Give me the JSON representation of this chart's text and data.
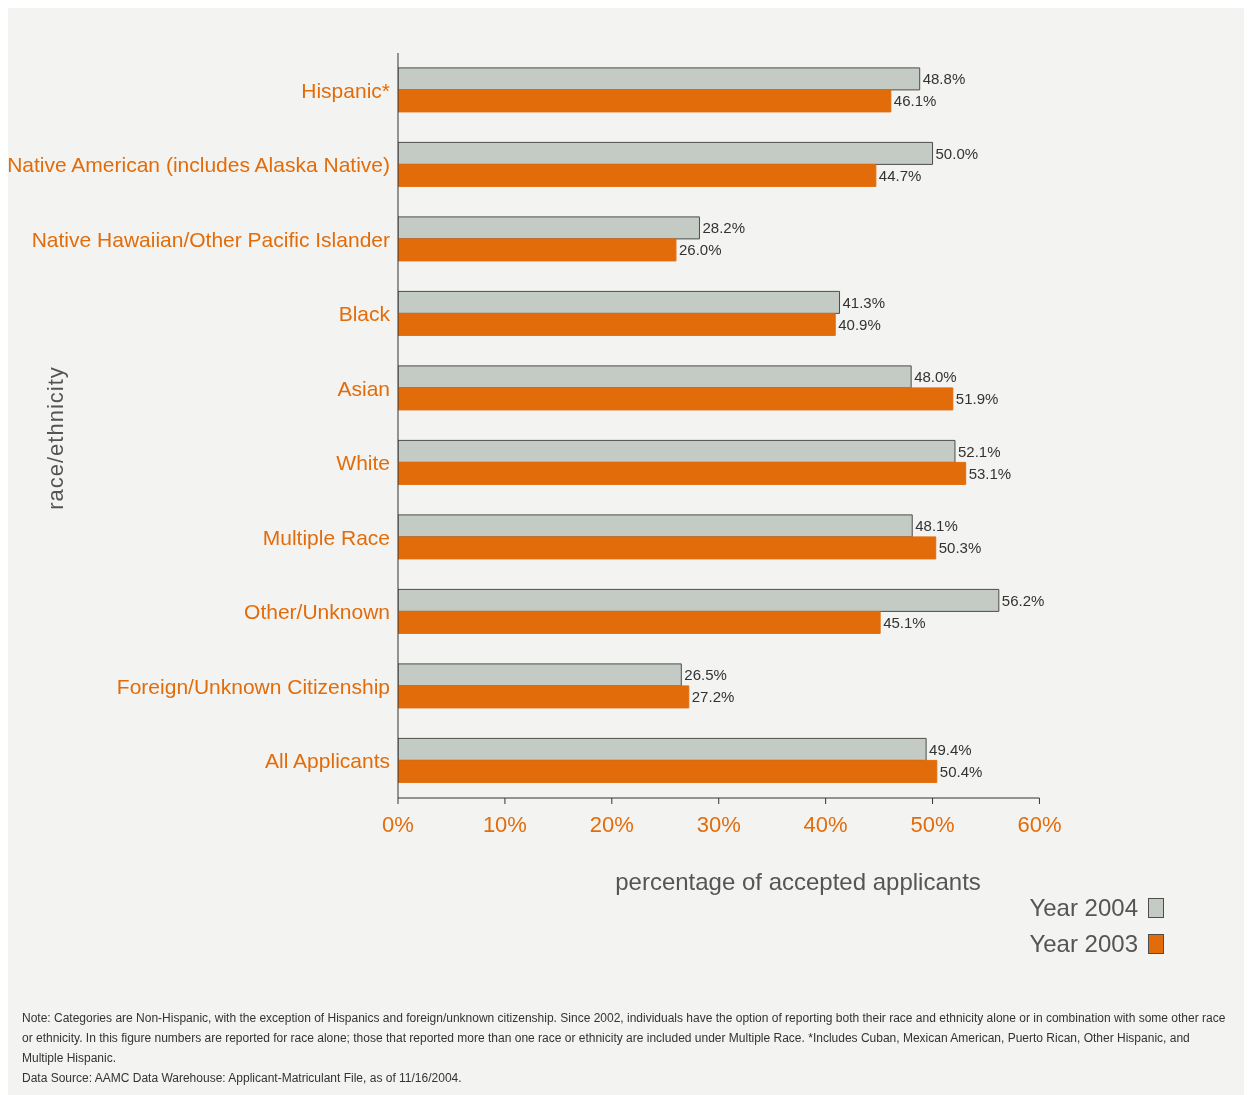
{
  "chart_data": {
    "type": "bar",
    "orientation": "horizontal",
    "categories": [
      "Hispanic*",
      "Native American (includes Alaska Native)",
      "Native Hawaiian/Other Pacific Islander",
      "Black",
      "Asian",
      "White",
      "Multiple Race",
      "Other/Unknown",
      "Foreign/Unknown Citizenship",
      "All Applicants"
    ],
    "series": [
      {
        "name": "Year 2004",
        "color": "#c3cbc4",
        "values": [
          48.8,
          50.0,
          28.2,
          41.3,
          48.0,
          52.1,
          48.1,
          56.2,
          26.5,
          49.4
        ],
        "value_labels": [
          "48.8%",
          "50.0%",
          "28.2%",
          "41.3%",
          "48.0%",
          "52.1%",
          "48.1%",
          "56.2%",
          "26.5%",
          "49.4%"
        ]
      },
      {
        "name": "Year 2003",
        "color": "#e36c0a",
        "values": [
          46.1,
          44.7,
          26.0,
          40.9,
          51.9,
          53.1,
          50.3,
          45.1,
          27.2,
          50.4
        ],
        "value_labels": [
          "46.1%",
          "44.7%",
          "26.0%",
          "40.9%",
          "51.9%",
          "53.1%",
          "50.3%",
          "45.1%",
          "27.2%",
          "50.4%"
        ]
      }
    ],
    "xlabel": "percentage of accepted applicants",
    "ylabel": "race/ethnicity",
    "xlim": [
      0,
      60
    ],
    "xticks": [
      {
        "value": 0,
        "label": "0%"
      },
      {
        "value": 10,
        "label": "10%"
      },
      {
        "value": 20,
        "label": "20%"
      },
      {
        "value": 30,
        "label": "30%"
      },
      {
        "value": 40,
        "label": "40%"
      },
      {
        "value": 50,
        "label": "50%"
      },
      {
        "value": 60,
        "label": "60%"
      }
    ],
    "grid": false,
    "legend": "bottom right",
    "annotations": [
      "Note: Categories are Non-Hispanic, with the exception of Hispanics and foreign/unknown citizenship. Since 2002, individuals have the option of reporting both their race and ethnicity alone or in combination with some other race or ethnicity. In this figure numbers are reported for race alone; those that reported more than one race or ethnicity are included under Multiple Race. *Includes Cuban, Mexican American, Puerto Rican, Other Hispanic, and Multiple Hispanic.",
      "Data Source: AAMC Data Warehouse: Applicant-Matriculant File, as of 11/16/2004."
    ]
  }
}
